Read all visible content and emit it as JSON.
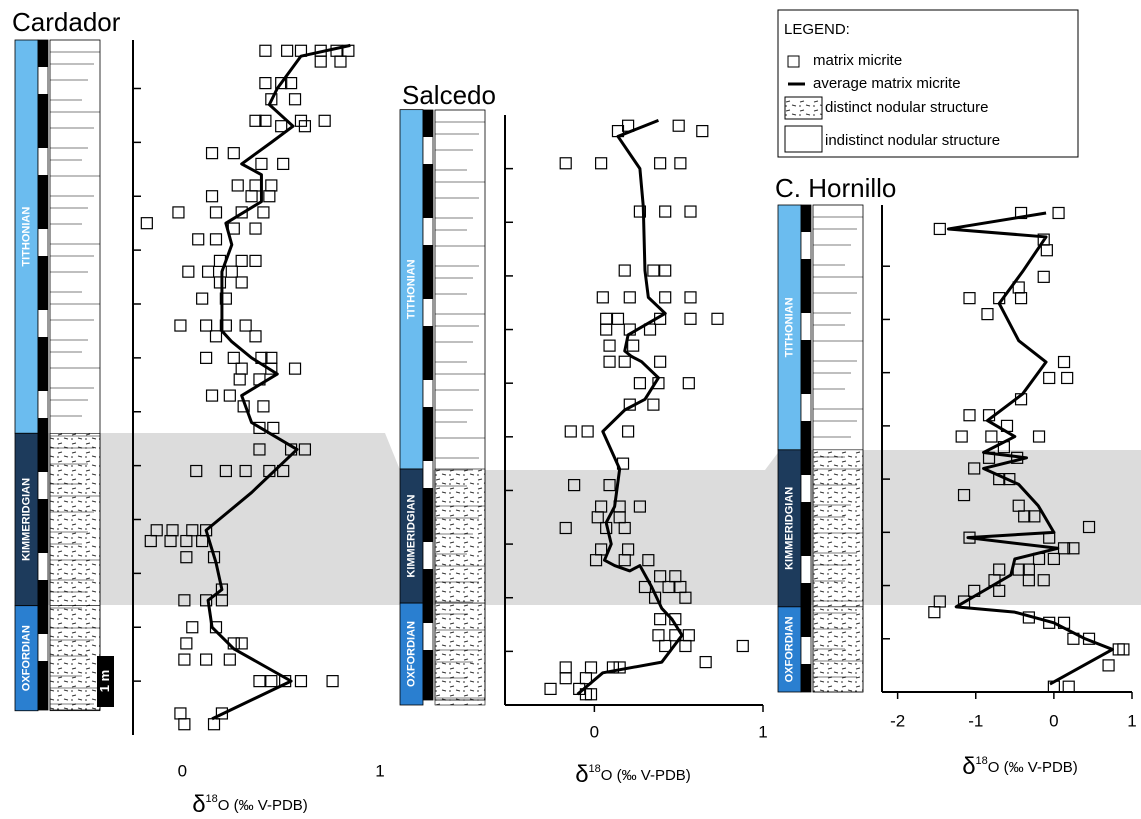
{
  "legend": {
    "title": "LEGEND:",
    "items": [
      "matrix micrite",
      "average matrix micrite",
      "distinct nodular structure",
      "indistinct nodular structure"
    ]
  },
  "chart_data": [
    {
      "type": "scatter",
      "title": "Cardador",
      "xlabel_parts": [
        "δ",
        "18",
        "O (‰ V-PDB)"
      ],
      "scale_label": "1 m",
      "xlim": [
        -0.25,
        1.0
      ],
      "xticks": [
        0,
        1
      ],
      "ylim": [
        0,
        12.9
      ],
      "yticks": [
        1,
        2,
        3,
        4,
        5,
        6,
        7,
        8,
        9,
        10,
        11,
        12
      ],
      "stages": [
        {
          "name": "TITHONIAN",
          "from": 5.6,
          "to": 12.9,
          "color": "#6bbcef"
        },
        {
          "name": "KIMMERIDGIAN",
          "from": 2.4,
          "to": 5.6,
          "color": "#1d3b5c"
        },
        {
          "name": "OXFORDIAN",
          "from": 0.45,
          "to": 2.4,
          "color": "#2a7fd0"
        }
      ],
      "series": [
        {
          "type": "scatter",
          "color": "#000000",
          "x": [
            0.42,
            0.53,
            0.6,
            0.7,
            0.78,
            0.84,
            0.7,
            0.8,
            0.42,
            0.5,
            0.55,
            0.45,
            0.57,
            0.37,
            0.42,
            0.6,
            0.72,
            0.5,
            0.62,
            0.15,
            0.26,
            0.4,
            0.51,
            0.28,
            0.37,
            0.45,
            0.15,
            0.35,
            0.44,
            -0.02,
            0.17,
            0.3,
            0.41,
            -0.18,
            0.26,
            0.37,
            0.08,
            0.17,
            0.19,
            0.3,
            0.37,
            0.03,
            0.13,
            0.25,
            0.19,
            0.3,
            0.1,
            0.22,
            -0.01,
            0.12,
            0.22,
            0.32,
            0.17,
            0.37,
            0.12,
            0.26,
            0.4,
            0.45,
            0.3,
            0.45,
            0.57,
            0.29,
            0.39,
            0.15,
            0.24,
            0.31,
            0.41,
            0.39,
            0.46,
            0.39,
            0.55,
            0.62,
            0.07,
            0.22,
            0.32,
            0.44,
            0.51,
            -0.13,
            -0.05,
            0.05,
            0.12,
            -0.16,
            -0.06,
            0.02,
            0.1,
            0.02,
            0.16,
            0.2,
            0.01,
            0.12,
            0.2,
            0.05,
            0.17,
            0.02,
            0.26,
            0.3,
            0.01,
            0.12,
            0.24,
            0.39,
            0.45,
            0.52,
            0.6,
            0.76,
            -0.01,
            0.2,
            0.01,
            0.16
          ],
          "values": [
            12.7,
            12.7,
            12.7,
            12.7,
            12.7,
            12.7,
            12.5,
            12.5,
            12.1,
            12.1,
            12.1,
            11.8,
            11.8,
            11.4,
            11.4,
            11.4,
            11.4,
            11.3,
            11.3,
            10.8,
            10.8,
            10.6,
            10.6,
            10.2,
            10.2,
            10.2,
            10.0,
            10.0,
            10.0,
            9.7,
            9.7,
            9.7,
            9.7,
            9.5,
            9.4,
            9.4,
            9.2,
            9.2,
            8.8,
            8.8,
            8.8,
            8.6,
            8.6,
            8.6,
            8.4,
            8.4,
            8.1,
            8.1,
            7.6,
            7.6,
            7.6,
            7.6,
            7.4,
            7.4,
            7.0,
            7.0,
            7.0,
            7.0,
            6.8,
            6.8,
            6.8,
            6.6,
            6.6,
            6.3,
            6.3,
            6.1,
            6.1,
            5.7,
            5.7,
            5.3,
            5.3,
            5.3,
            4.9,
            4.9,
            4.9,
            4.9,
            4.9,
            3.8,
            3.8,
            3.8,
            3.8,
            3.6,
            3.6,
            3.6,
            3.6,
            3.3,
            3.3,
            2.7,
            2.5,
            2.5,
            2.5,
            2.0,
            2.0,
            1.7,
            1.7,
            1.7,
            1.4,
            1.4,
            1.4,
            1.0,
            1.0,
            1.0,
            1.0,
            1.0,
            0.4,
            0.4,
            0.2,
            0.2
          ]
        },
        {
          "type": "line",
          "color": "#000000",
          "x": [
            0.85,
            0.6,
            0.48,
            0.44,
            0.56,
            0.45,
            0.3,
            0.4,
            0.4,
            0.22,
            0.25,
            0.2,
            0.2,
            0.25,
            0.35,
            0.48,
            0.3,
            0.35,
            0.58,
            0.35,
            0.12,
            0.17,
            0.2,
            0.13,
            0.15,
            0.26,
            0.55,
            0.15
          ],
          "values": [
            12.8,
            12.6,
            12.0,
            11.7,
            11.3,
            11.0,
            10.6,
            10.4,
            9.9,
            9.5,
            9.1,
            8.6,
            7.5,
            7.3,
            7.0,
            6.7,
            6.3,
            5.8,
            5.3,
            4.5,
            3.8,
            3.2,
            2.7,
            2.5,
            2.0,
            1.6,
            1.0,
            0.3
          ]
        }
      ]
    },
    {
      "type": "scatter",
      "title": "Salcedo",
      "xlabel_parts": [
        "δ",
        "18",
        "O (‰ V-PDB)"
      ],
      "xlim": [
        -0.53,
        1.0
      ],
      "xticks": [
        0,
        1
      ],
      "ylim": [
        0,
        11.0
      ],
      "yticks": [
        1,
        2,
        3,
        4,
        5,
        6,
        7,
        8,
        9,
        10
      ],
      "stages": [
        {
          "name": "TITHONIAN",
          "from": 4.4,
          "to": 11.1,
          "color": "#6bbcef"
        },
        {
          "name": "KIMMERIDGIAN",
          "from": 1.9,
          "to": 4.4,
          "color": "#1d3b5c"
        },
        {
          "name": "OXFORDIAN",
          "from": 0,
          "to": 1.9,
          "color": "#2a7fd0"
        }
      ],
      "series": [
        {
          "type": "scatter",
          "color": "#000000",
          "x": [
            0.2,
            0.5,
            0.14,
            0.64,
            -0.17,
            0.04,
            0.39,
            0.51,
            0.27,
            0.42,
            0.57,
            0.18,
            0.35,
            0.42,
            0.05,
            0.21,
            0.42,
            0.57,
            0.07,
            0.14,
            0.39,
            0.57,
            0.73,
            0.07,
            0.21,
            0.33,
            0.09,
            0.23,
            0.09,
            0.18,
            0.39,
            0.27,
            0.38,
            0.56,
            0.21,
            0.35,
            -0.14,
            -0.04,
            0.2,
            0.17,
            -0.12,
            0.09,
            0.04,
            0.15,
            0.27,
            0.02,
            0.15,
            -0.17,
            0.07,
            0.18,
            0.04,
            0.2,
            0.01,
            0.18,
            0.32,
            0.39,
            0.48,
            0.3,
            0.44,
            0.51,
            0.36,
            0.54,
            0.39,
            0.48,
            0.38,
            0.48,
            0.56,
            0.42,
            0.54,
            0.88,
            0.66,
            -0.17,
            -0.02,
            0.11,
            0.15,
            -0.17,
            -0.05,
            -0.26,
            -0.09,
            -0.05,
            -0.02
          ],
          "values": [
            10.8,
            10.8,
            10.7,
            10.7,
            10.1,
            10.1,
            10.1,
            10.1,
            9.2,
            9.2,
            9.2,
            8.1,
            8.1,
            8.1,
            7.6,
            7.6,
            7.6,
            7.6,
            7.2,
            7.2,
            7.2,
            7.2,
            7.2,
            7.0,
            7.0,
            7.0,
            6.7,
            6.7,
            6.4,
            6.4,
            6.4,
            6.0,
            6.0,
            6.0,
            5.6,
            5.6,
            5.1,
            5.1,
            5.1,
            4.5,
            4.1,
            4.1,
            3.7,
            3.7,
            3.7,
            3.5,
            3.5,
            3.3,
            3.3,
            3.3,
            2.9,
            2.9,
            2.7,
            2.7,
            2.7,
            2.4,
            2.4,
            2.2,
            2.2,
            2.2,
            2.0,
            2.0,
            1.6,
            1.6,
            1.3,
            1.3,
            1.3,
            1.1,
            1.1,
            1.1,
            0.8,
            0.7,
            0.7,
            0.7,
            0.7,
            0.5,
            0.5,
            0.3,
            0.3,
            0.2,
            0.2
          ]
        },
        {
          "type": "line",
          "color": "#000000",
          "x": [
            0.38,
            0.14,
            0.27,
            0.29,
            0.3,
            0.32,
            0.42,
            0.2,
            0.18,
            0.22,
            0.28,
            0.38,
            0.3,
            0.18,
            0.05,
            0.15,
            0.12,
            0.07,
            0.1,
            0.06,
            0.12,
            0.21,
            0.27,
            0.34,
            0.4,
            0.46,
            0.52,
            0.4,
            0.05,
            -0.1
          ],
          "values": [
            10.9,
            10.6,
            10.0,
            9.3,
            8.1,
            7.6,
            7.3,
            6.9,
            6.6,
            6.5,
            6.4,
            6.1,
            5.7,
            5.5,
            5.1,
            4.4,
            3.7,
            3.4,
            3.0,
            2.7,
            2.6,
            2.5,
            2.6,
            2.2,
            1.8,
            1.6,
            1.3,
            0.8,
            0.6,
            0.2
          ]
        }
      ]
    },
    {
      "type": "scatter",
      "title": "C. Hornillo",
      "xlabel_parts": [
        "δ",
        "18",
        "O (‰ V-PDB)"
      ],
      "xlim": [
        -2.2,
        1.0
      ],
      "xticks": [
        -2,
        -1,
        0,
        1
      ],
      "ylim": [
        0,
        9.15
      ],
      "yticks": [
        1,
        2,
        3,
        4,
        5,
        6,
        7,
        8
      ],
      "stages": [
        {
          "name": "TITHONIAN",
          "from": 4.55,
          "to": 9.15,
          "color": "#6bbcef"
        },
        {
          "name": "KIMMERIDGIAN",
          "from": 1.6,
          "to": 4.55,
          "color": "#1d3b5c"
        },
        {
          "name": "OXFORDIAN",
          "from": 0,
          "to": 1.6,
          "color": "#2a7fd0"
        }
      ],
      "series": [
        {
          "type": "scatter",
          "color": "#000000",
          "x": [
            -0.42,
            0.06,
            -1.46,
            -0.13,
            -0.09,
            -0.13,
            -0.45,
            -1.08,
            -0.7,
            -0.42,
            -0.85,
            0.13,
            -0.06,
            0.17,
            -0.42,
            -1.08,
            -0.83,
            -0.6,
            -1.18,
            -0.8,
            -0.19,
            -0.64,
            -0.83,
            -0.47,
            -1.02,
            -0.7,
            -0.57,
            -1.15,
            -0.45,
            -0.38,
            -0.25,
            0.45,
            -1.08,
            -0.06,
            0.13,
            0.25,
            -0.19,
            0,
            -0.7,
            -0.45,
            -0.32,
            -0.76,
            -0.32,
            -0.13,
            -1.02,
            -0.7,
            -1.46,
            -1.15,
            -1.53,
            -0.32,
            -0.06,
            0.13,
            0.25,
            0.45,
            0.83,
            0.89,
            0.7,
            0,
            0.19
          ],
          "values": [
            9.0,
            9.0,
            8.7,
            8.5,
            8.3,
            7.8,
            7.6,
            7.4,
            7.4,
            7.4,
            7.1,
            6.2,
            5.9,
            5.9,
            5.5,
            5.2,
            5.2,
            5.0,
            4.8,
            4.8,
            4.8,
            4.6,
            4.4,
            4.4,
            4.2,
            4.0,
            4.0,
            3.7,
            3.5,
            3.3,
            3.3,
            3.1,
            2.9,
            2.9,
            2.7,
            2.7,
            2.5,
            2.5,
            2.3,
            2.3,
            2.3,
            2.1,
            2.1,
            2.1,
            1.9,
            1.9,
            1.7,
            1.7,
            1.5,
            1.4,
            1.3,
            1.3,
            1.0,
            1.0,
            0.8,
            0.8,
            0.5,
            0.1,
            0.1
          ]
        },
        {
          "type": "line",
          "color": "#000000",
          "x": [
            -0.1,
            -1.35,
            -0.1,
            -0.4,
            -0.7,
            -0.45,
            -0.1,
            -0.4,
            -0.85,
            -0.5,
            -0.9,
            -0.35,
            -0.9,
            -0.45,
            -0.2,
            0.0,
            -1.1,
            0.05,
            -0.5,
            -0.55,
            -0.9,
            -1.25,
            -0.5,
            0.0,
            0.4,
            0.75,
            -0.05
          ],
          "values": [
            9.0,
            8.7,
            8.55,
            7.9,
            7.3,
            6.6,
            6.2,
            5.6,
            5.1,
            4.8,
            4.5,
            4.4,
            4.2,
            3.9,
            3.5,
            3.0,
            2.9,
            2.7,
            2.5,
            2.2,
            1.9,
            1.6,
            1.5,
            1.3,
            1.0,
            0.8,
            0.15
          ]
        }
      ]
    }
  ]
}
